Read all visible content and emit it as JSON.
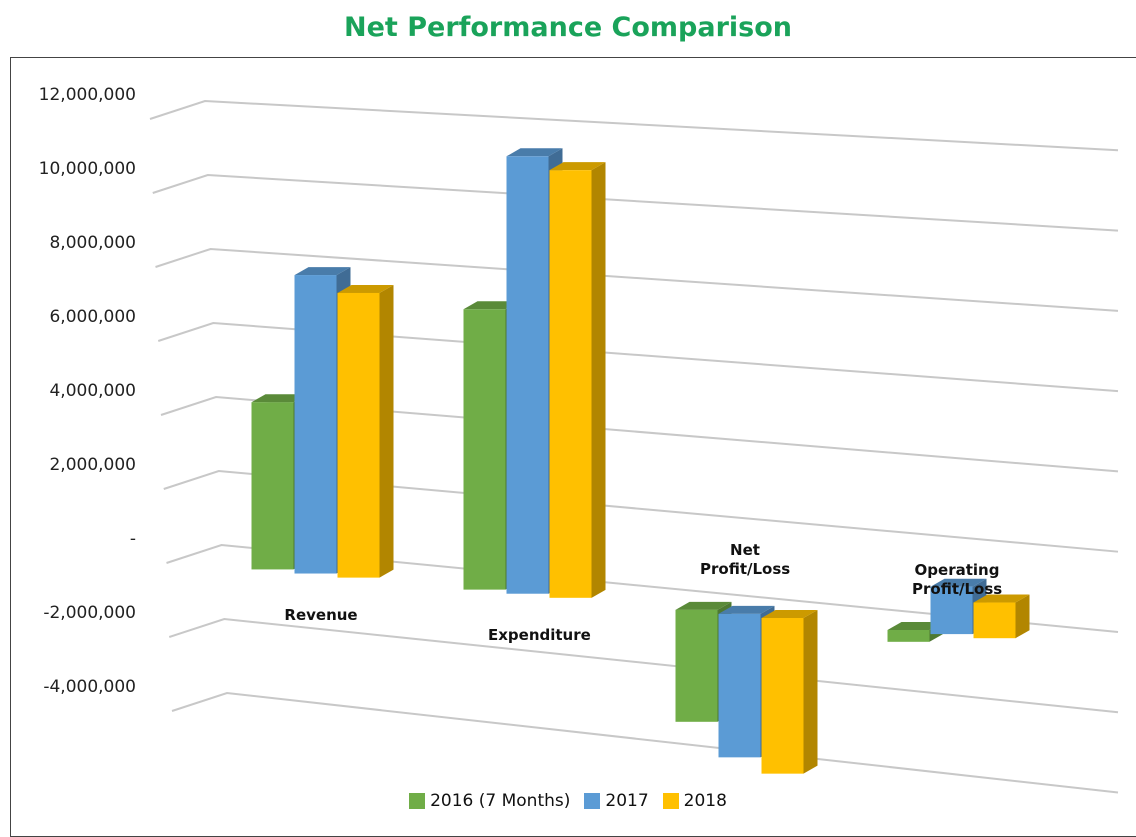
{
  "chart_data": {
    "type": "bar3d",
    "title": "Net Performance Comparison",
    "categories": [
      "Revenue",
      "Expenditure",
      "Net Profit/Loss",
      "Operating Profit/Loss"
    ],
    "series": [
      {
        "name": "2016 (7 Months)",
        "color": "#70ad47",
        "values": [
          4500000,
          7400000,
          -2900000,
          -300000
        ]
      },
      {
        "name": "2017",
        "color": "#5b9bd5",
        "values": [
          8000000,
          11500000,
          -3700000,
          1200000
        ]
      },
      {
        "name": "2018",
        "color": "#ffc000",
        "values": [
          7600000,
          11200000,
          -4000000,
          900000
        ]
      }
    ],
    "ylim": [
      -4000000,
      12000000
    ],
    "yticks": [
      {
        "value": -4000000,
        "label": "-4,000,000"
      },
      {
        "value": -2000000,
        "label": "-2,000,000"
      },
      {
        "value": 0,
        "label": "-"
      },
      {
        "value": 2000000,
        "label": "2,000,000"
      },
      {
        "value": 4000000,
        "label": "4,000,000"
      },
      {
        "value": 6000000,
        "label": "6,000,000"
      },
      {
        "value": 8000000,
        "label": "8,000,000"
      },
      {
        "value": 10000000,
        "label": "10,000,000"
      },
      {
        "value": 12000000,
        "label": "12,000,000"
      }
    ],
    "grid": true,
    "legend": "bottom"
  }
}
